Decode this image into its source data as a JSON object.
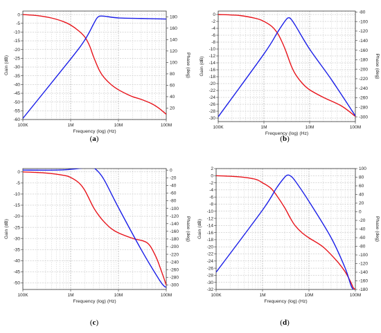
{
  "chart_data": [
    {
      "panel_label": "a",
      "type": "line",
      "x_scale": "log",
      "x_ticks": [
        100000,
        1000000,
        10000000,
        100000000
      ],
      "x_tick_labels": [
        "100K",
        "1M",
        "10M",
        "100M"
      ],
      "xlabel": "Frequency (log) (Hz)",
      "ylabel_left": "Gain (dB)",
      "ylabel_right": "Phase (deg)",
      "ylim_left": [
        -60,
        2
      ],
      "ylim_right": [
        0,
        190
      ],
      "y_ticks_left": [
        0,
        -5,
        -10,
        -15,
        -20,
        -25,
        -30,
        -35,
        -40,
        -45,
        -50,
        -55,
        -60
      ],
      "y_ticks_right": [
        180,
        160,
        140,
        120,
        100,
        80,
        60,
        40,
        20
      ],
      "grid": true,
      "series": [
        {
          "color": "#e8131a",
          "axis": "left",
          "x": [
            100000,
            200000,
            400000,
            700000,
            1000000,
            1500000,
            2000000,
            2500000,
            3000000,
            4000000,
            5000000,
            7000000,
            10000000,
            15000000,
            20000000,
            30000000,
            50000000,
            70000000,
            100000000
          ],
          "y": [
            0,
            -0.6,
            -2,
            -4,
            -6,
            -9.5,
            -13,
            -18,
            -24,
            -32,
            -36,
            -40,
            -43,
            -45.5,
            -47,
            -48.5,
            -51,
            -53.5,
            -57
          ]
        },
        {
          "color": "#1a1ee8",
          "axis": "right",
          "x": [
            100000,
            1000000,
            2000000,
            3000000,
            3500000,
            4000000,
            5000000,
            10000000,
            30000000,
            100000000
          ],
          "y": [
            2,
            106,
            140,
            167,
            177,
            181,
            181,
            178,
            177,
            176
          ]
        }
      ]
    },
    {
      "panel_label": "b",
      "type": "line",
      "x_scale": "log",
      "x_ticks": [
        100000,
        1000000,
        10000000,
        100000000
      ],
      "x_tick_labels": [
        "100K",
        "1M",
        "10M",
        "100M"
      ],
      "xlabel": "Frequency (log) (Hz)",
      "ylabel_left": "Gain (dB)",
      "ylabel_right": "Phase (deg)",
      "ylim_left": [
        -31,
        1
      ],
      "ylim_right": [
        -310,
        -78
      ],
      "y_ticks_left": [
        0,
        -2,
        -4,
        -6,
        -8,
        -10,
        -12,
        -14,
        -16,
        -18,
        -20,
        -22,
        -24,
        -26,
        -28,
        -30
      ],
      "y_ticks_right": [
        -80,
        -100,
        -120,
        -140,
        -160,
        -180,
        -200,
        -220,
        -240,
        -260,
        -280,
        -300
      ],
      "grid": true,
      "series": [
        {
          "color": "#e8131a",
          "axis": "left",
          "x": [
            100000,
            300000,
            700000,
            1000000,
            1500000,
            2000000,
            2500000,
            3000000,
            4000000,
            5000000,
            7000000,
            10000000,
            20000000,
            50000000,
            100000000
          ],
          "y": [
            0,
            -0.3,
            -1.2,
            -2,
            -3.5,
            -5.5,
            -8,
            -10.5,
            -15,
            -17.5,
            -20,
            -21.8,
            -24,
            -26.5,
            -29.5
          ]
        },
        {
          "color": "#1a1ee8",
          "axis": "right",
          "x": [
            100000,
            1000000,
            2000000,
            3000000,
            3500000,
            4000000,
            5000000,
            10000000,
            30000000,
            100000000
          ],
          "y": [
            -300,
            -168,
            -122,
            -97,
            -92,
            -96,
            -110,
            -158,
            -222,
            -298
          ]
        }
      ]
    },
    {
      "panel_label": "c",
      "type": "line",
      "x_scale": "log",
      "x_ticks": [
        100000,
        1000000,
        10000000,
        100000000
      ],
      "x_tick_labels": [
        "100K",
        "1M",
        "10M",
        "100M"
      ],
      "xlabel": "Frequency (log) (Hz)",
      "ylabel_left": "Gain (dB)",
      "ylabel_right": "Phase (deg)",
      "ylim_left": [
        -53,
        1.5
      ],
      "ylim_right": [
        -312,
        4
      ],
      "y_ticks_left": [
        0,
        -5,
        -10,
        -15,
        -20,
        -25,
        -30,
        -35,
        -40,
        -45,
        -50
      ],
      "y_ticks_right": [
        0,
        -20,
        -40,
        -60,
        -80,
        -100,
        -120,
        -140,
        -160,
        -180,
        -200,
        -220,
        -240,
        -260,
        -280,
        -300
      ],
      "grid": true,
      "series": [
        {
          "color": "#e8131a",
          "axis": "left",
          "x": [
            100000,
            300000,
            700000,
            1000000,
            1500000,
            2000000,
            3000000,
            4000000,
            5000000,
            7000000,
            10000000,
            20000000,
            40000000,
            60000000,
            80000000,
            100000000
          ],
          "y": [
            0,
            -0.5,
            -1.5,
            -2.5,
            -5,
            -8.5,
            -16,
            -20,
            -22.5,
            -25.5,
            -27.5,
            -30,
            -32,
            -38,
            -45,
            -51
          ]
        },
        {
          "color": "#1a1ee8",
          "axis": "right",
          "x": [
            100000,
            500000,
            1000000,
            2000000,
            2700000,
            3500000,
            5000000,
            10000000,
            30000000,
            70000000,
            90000000,
            100000000
          ],
          "y": [
            0,
            0,
            2,
            6,
            8,
            0,
            -25,
            -98,
            -208,
            -285,
            -303,
            -306
          ]
        }
      ]
    },
    {
      "panel_label": "d",
      "type": "line",
      "x_scale": "log",
      "x_ticks": [
        100000,
        1000000,
        10000000,
        100000000
      ],
      "x_tick_labels": [
        "100K",
        "1M",
        "10M",
        "100M"
      ],
      "xlabel": "Frequency (log) (Hz)",
      "ylabel_left": "Gain (dB)",
      "ylabel_right": "Phase (deg)",
      "ylim_left": [
        -32,
        2
      ],
      "ylim_right": [
        -180,
        100
      ],
      "y_ticks_left": [
        2,
        0,
        -2,
        -4,
        -6,
        -8,
        -10,
        -12,
        -14,
        -16,
        -18,
        -20,
        -22,
        -24,
        -26,
        -28,
        -30,
        -32
      ],
      "y_ticks_right": [
        100,
        80,
        60,
        40,
        20,
        0,
        -20,
        -40,
        -60,
        -80,
        -100,
        -120,
        -140,
        -160,
        -180
      ],
      "grid": true,
      "series": [
        {
          "color": "#e8131a",
          "axis": "left",
          "x": [
            100000,
            300000,
            700000,
            1000000,
            1500000,
            2000000,
            3000000,
            4000000,
            5000000,
            7000000,
            10000000,
            20000000,
            40000000,
            60000000,
            80000000,
            90000000,
            100000000
          ],
          "y": [
            0,
            -0.3,
            -1,
            -2,
            -3.5,
            -5.5,
            -9,
            -12,
            -14,
            -16,
            -17.5,
            -20,
            -24,
            -27,
            -30,
            -31.5,
            -32
          ]
        },
        {
          "color": "#1a1ee8",
          "axis": "right",
          "x": [
            100000,
            1000000,
            2000000,
            3000000,
            3500000,
            4000000,
            5000000,
            10000000,
            30000000,
            60000000,
            80000000,
            90000000
          ],
          "y": [
            -140,
            4,
            55,
            80,
            85,
            83,
            72,
            24,
            -60,
            -130,
            -170,
            -180
          ]
        }
      ]
    }
  ]
}
